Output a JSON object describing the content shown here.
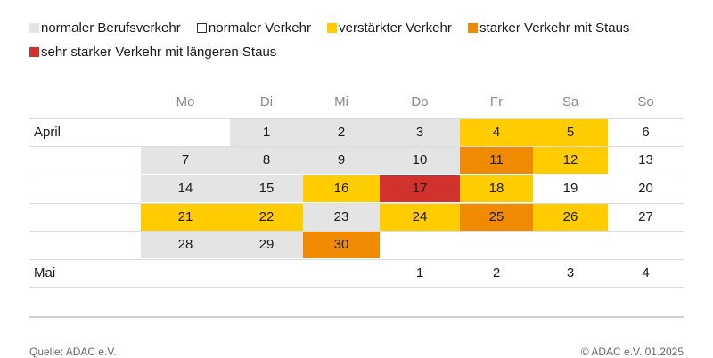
{
  "legend": [
    {
      "label": "normaler Berufsverkehr",
      "color": "#e4e4e4"
    },
    {
      "label": "normaler Verkehr",
      "color": "#ffffff"
    },
    {
      "label": "verstärkter Verkehr",
      "color": "#ffcc00"
    },
    {
      "label": "starker Verkehr mit Staus",
      "color": "#f08a00"
    },
    {
      "label": "sehr starker Verkehr mit längeren Staus",
      "color": "#d2322d"
    }
  ],
  "weekdays": [
    "Mo",
    "Di",
    "Mi",
    "Do",
    "Fr",
    "Sa",
    "So"
  ],
  "rows": [
    {
      "month": "April",
      "days": [
        null,
        {
          "d": "1",
          "level": "g"
        },
        {
          "d": "2",
          "level": "g"
        },
        {
          "d": "3",
          "level": "g"
        },
        {
          "d": "4",
          "level": "y"
        },
        {
          "d": "5",
          "level": "y"
        },
        {
          "d": "6",
          "level": "w"
        }
      ]
    },
    {
      "month": "",
      "days": [
        {
          "d": "7",
          "level": "g"
        },
        {
          "d": "8",
          "level": "g"
        },
        {
          "d": "9",
          "level": "g"
        },
        {
          "d": "10",
          "level": "g"
        },
        {
          "d": "11",
          "level": "o"
        },
        {
          "d": "12",
          "level": "y"
        },
        {
          "d": "13",
          "level": "w"
        }
      ]
    },
    {
      "month": "",
      "days": [
        {
          "d": "14",
          "level": "g"
        },
        {
          "d": "15",
          "level": "g"
        },
        {
          "d": "16",
          "level": "y"
        },
        {
          "d": "17",
          "level": "r"
        },
        {
          "d": "18",
          "level": "y"
        },
        {
          "d": "19",
          "level": "w"
        },
        {
          "d": "20",
          "level": "w"
        }
      ]
    },
    {
      "month": "",
      "days": [
        {
          "d": "21",
          "level": "y"
        },
        {
          "d": "22",
          "level": "y"
        },
        {
          "d": "23",
          "level": "g"
        },
        {
          "d": "24",
          "level": "y"
        },
        {
          "d": "25",
          "level": "o"
        },
        {
          "d": "26",
          "level": "y"
        },
        {
          "d": "27",
          "level": "w"
        }
      ]
    },
    {
      "month": "",
      "days": [
        {
          "d": "28",
          "level": "g"
        },
        {
          "d": "29",
          "level": "g"
        },
        {
          "d": "30",
          "level": "o"
        },
        null,
        null,
        null,
        null
      ]
    },
    {
      "month": "Mai",
      "days": [
        null,
        null,
        null,
        {
          "d": "1",
          "level": "w"
        },
        {
          "d": "2",
          "level": "w"
        },
        {
          "d": "3",
          "level": "w"
        },
        {
          "d": "4",
          "level": "w"
        }
      ]
    }
  ],
  "level_colors": {
    "g": "#e4e4e4",
    "w": "#ffffff",
    "y": "#ffcc00",
    "o": "#f08a00",
    "r": "#d2322d"
  },
  "footer": {
    "source": "Quelle: ADAC e.V.",
    "copyright": "© ADAC e.V. 01.2025"
  }
}
